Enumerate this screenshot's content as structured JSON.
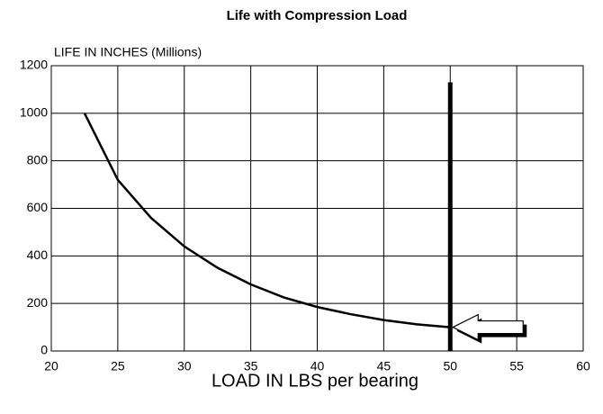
{
  "chart_data": {
    "type": "line",
    "title": "Life with Compression Load",
    "ylabel": "LIFE IN INCHES (Millions)",
    "xlabel": "LOAD IN LBS per bearing",
    "x": [
      22.5,
      25,
      27.5,
      30,
      32.5,
      35,
      37.5,
      40,
      42.5,
      45,
      47.5,
      50
    ],
    "series": [
      {
        "name": "Life",
        "color": "#000000",
        "values": [
          1000,
          720,
          560,
          440,
          350,
          280,
          225,
          185,
          155,
          130,
          112,
          100
        ]
      }
    ],
    "xlim": [
      20,
      60
    ],
    "xticks": [
      20,
      25,
      30,
      35,
      40,
      45,
      50,
      55,
      60
    ],
    "ylim": [
      0,
      1200
    ],
    "yticks": [
      0,
      200,
      400,
      600,
      800,
      1000,
      1200
    ],
    "grid": true,
    "vlines": [
      {
        "x": 50,
        "ymax": 1130,
        "color": "#000000"
      }
    ]
  }
}
